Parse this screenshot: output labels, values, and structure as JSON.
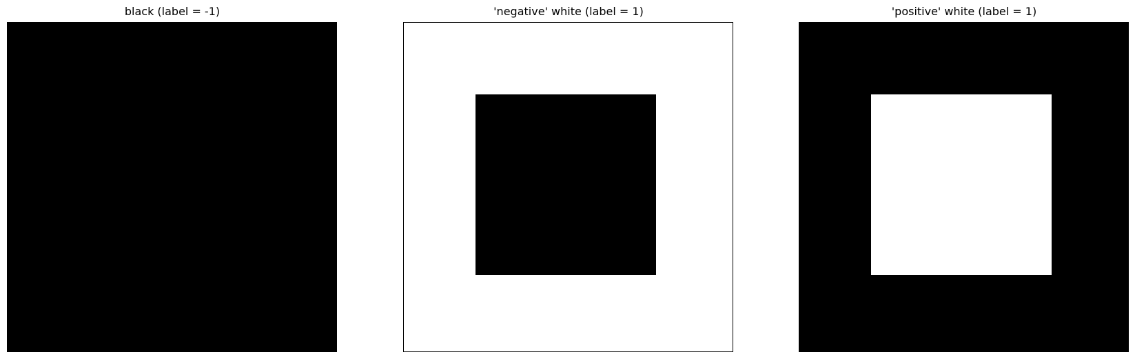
{
  "panels": [
    {
      "title": "black (label = -1)",
      "background_color": "#000000",
      "inner_square_color": null
    },
    {
      "title": "'negative' white (label = 1)",
      "background_color": "#ffffff",
      "inner_square_color": "#000000"
    },
    {
      "title": "'positive' white (label = 1)",
      "background_color": "#000000",
      "inner_square_color": "#ffffff"
    }
  ]
}
